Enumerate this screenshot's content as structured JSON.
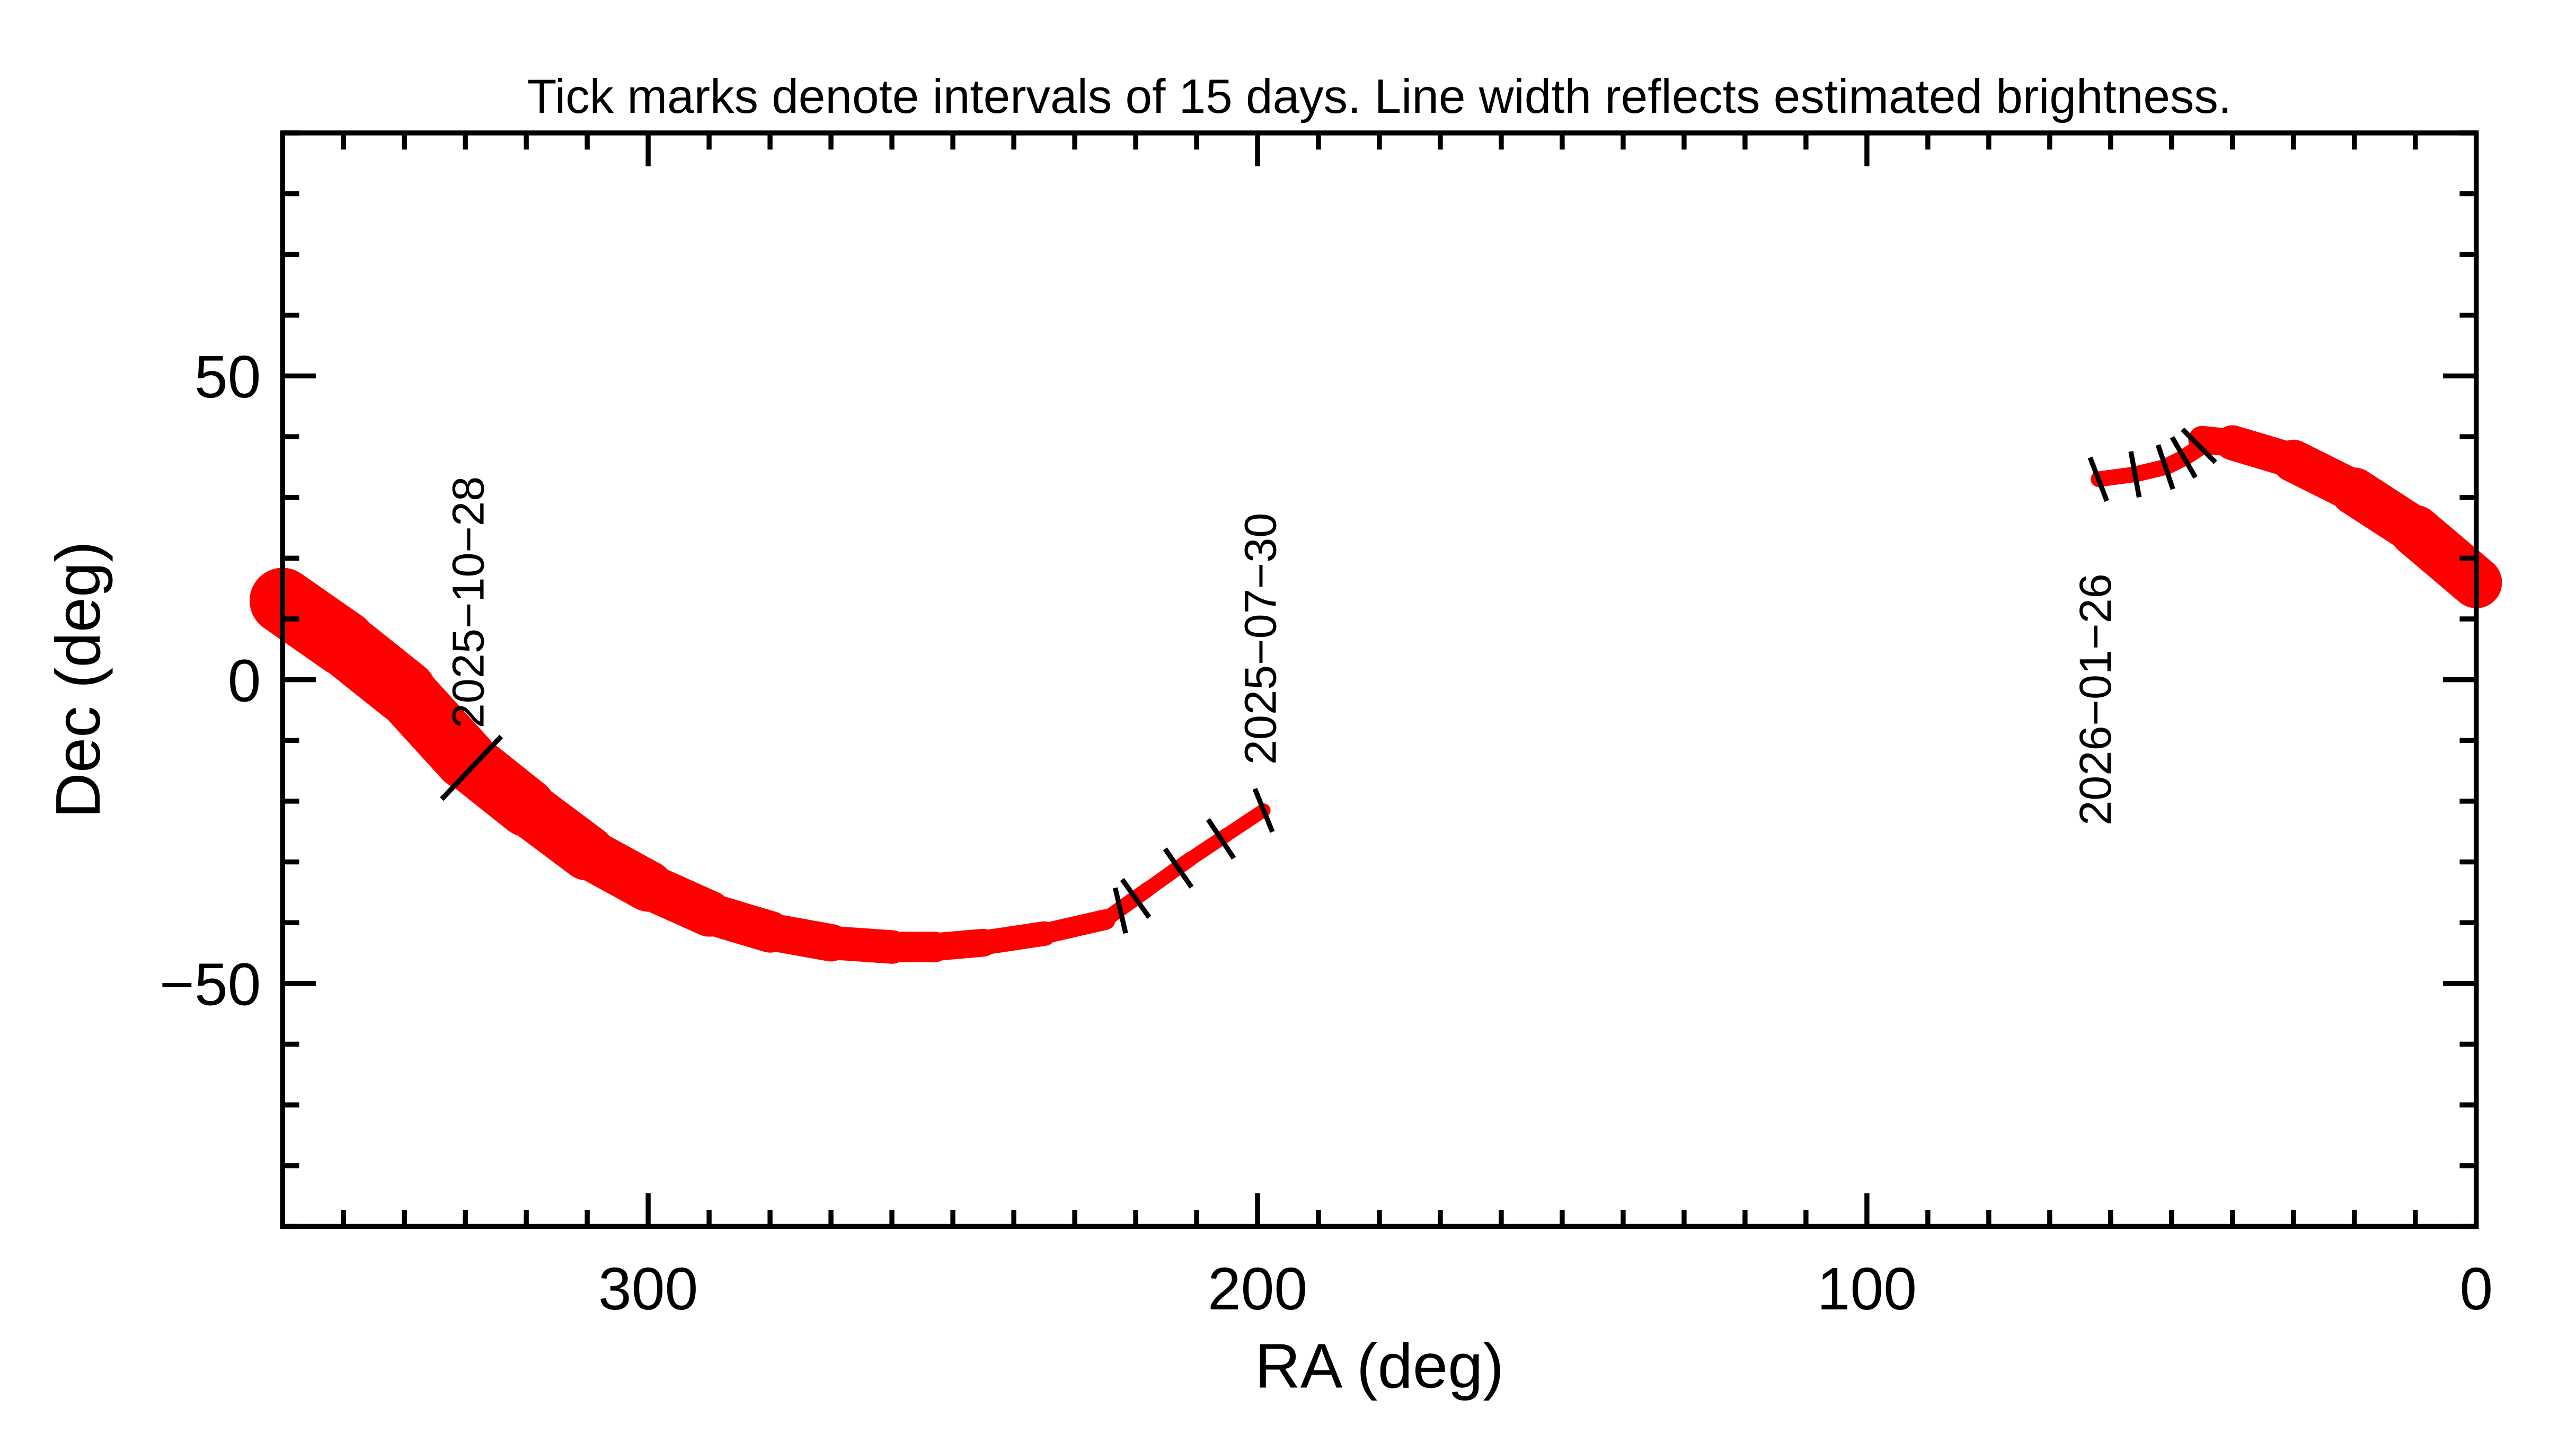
{
  "chart_data": {
    "type": "line",
    "title": "Tick marks denote intervals of 15 days.  Line width reflects estimated brightness.",
    "xlabel": "RA (deg)",
    "ylabel": "Dec (deg)",
    "xlim": [
      360,
      0
    ],
    "ylim": [
      -90,
      90
    ],
    "x_reversed": true,
    "xticks_major": [
      300,
      200,
      100,
      0
    ],
    "xtick_labels": [
      "300",
      "200",
      "100",
      "0"
    ],
    "yticks_major": [
      50,
      0,
      -50
    ],
    "ytick_labels": [
      "50",
      "0",
      "−50"
    ],
    "minor_tick_step": 10,
    "grid": false,
    "line_color": "#ff0000",
    "tick_color": "#000000",
    "segments": [
      {
        "points": [
          [
            360,
            13
          ],
          [
            350,
            6
          ],
          [
            340,
            -2
          ],
          [
            330,
            -13
          ],
          [
            320,
            -21
          ],
          [
            310,
            -28.5
          ],
          [
            300,
            -34
          ],
          [
            290,
            -38.5
          ],
          [
            280,
            -41.5
          ],
          [
            270,
            -43.3
          ],
          [
            260,
            -44
          ],
          [
            253,
            -44
          ],
          [
            245,
            -43.3
          ],
          [
            235,
            -41.8
          ],
          [
            225,
            -39.5
          ]
        ],
        "brightness": [
          1.0,
          0.98,
          0.95,
          0.9,
          0.85,
          0.78,
          0.7,
          0.62,
          0.55,
          0.48,
          0.42,
          0.38,
          0.33,
          0.27,
          0.2
        ]
      },
      {
        "points": [
          [
            225,
            -39.5
          ],
          [
            218,
            -34.5
          ],
          [
            211,
            -29.5
          ],
          [
            205,
            -25.5
          ],
          [
            199,
            -21.5
          ]
        ],
        "brightness": [
          0.15,
          0.14,
          0.13,
          0.12,
          0.12
        ]
      },
      {
        "points": [
          [
            62,
            33
          ],
          [
            56,
            33.8
          ],
          [
            51,
            35
          ],
          [
            48,
            36.5
          ],
          [
            45,
            38.5
          ]
        ],
        "brightness": [
          0.15,
          0.15,
          0.16,
          0.17,
          0.18
        ]
      },
      {
        "points": [
          [
            45,
            39.5
          ],
          [
            40,
            39
          ],
          [
            30,
            36
          ],
          [
            20,
            31
          ],
          [
            10,
            24.5
          ],
          [
            0,
            16
          ]
        ],
        "brightness": [
          0.3,
          0.4,
          0.55,
          0.65,
          0.72,
          0.78
        ]
      }
    ],
    "date_ticks": [
      {
        "ra": 329,
        "dec": -14.5
      },
      {
        "ra": 222.5,
        "dec": -38
      },
      {
        "ra": 220,
        "dec": -36
      },
      {
        "ra": 213,
        "dec": -31
      },
      {
        "ra": 206,
        "dec": -26.2
      },
      {
        "ra": 199,
        "dec": -21.5
      },
      {
        "ra": 62,
        "dec": 33
      },
      {
        "ra": 56,
        "dec": 33.8
      },
      {
        "ra": 51,
        "dec": 35
      },
      {
        "ra": 48,
        "dec": 36.6
      },
      {
        "ra": 45.5,
        "dec": 38.5
      }
    ],
    "annotations": [
      {
        "text": "2025−10−28",
        "ra": 327,
        "dec": -8
      },
      {
        "text": "2025−07−30",
        "ra": 197,
        "dec": -14
      },
      {
        "text": "2026−01−26",
        "ra": 60,
        "dec": -24
      }
    ]
  }
}
